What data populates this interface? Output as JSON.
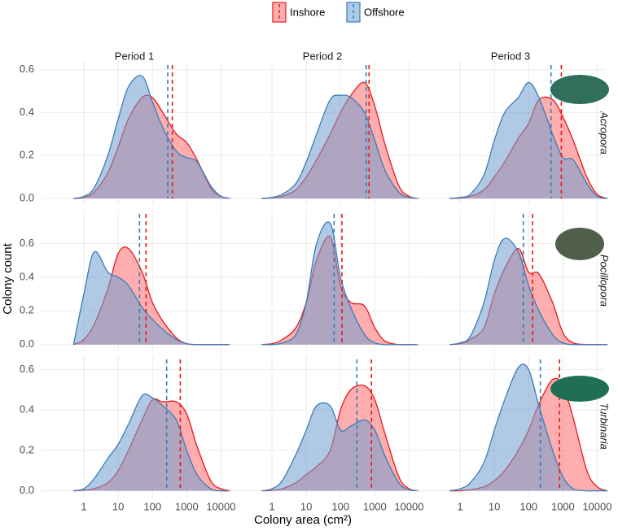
{
  "chart_data": {
    "type": "density",
    "x_label": "Colony area (cm²)",
    "y_label": "Colony count",
    "log_x": true,
    "grid": true,
    "legend_position": "top",
    "xlim": [
      0.055,
      16000
    ],
    "xticks": [
      1,
      10,
      100,
      1000,
      10000
    ],
    "x": [
      0.5,
      1,
      2,
      5,
      10,
      20,
      50,
      100,
      200,
      500,
      1000,
      2000,
      5000,
      10000,
      20000
    ],
    "series": [
      {
        "name": "Inshore",
        "color": "#e41a1c",
        "fill": "#ff6b6e"
      },
      {
        "name": "Offshore",
        "color": "#377eb8",
        "fill": "#6f9fd0"
      }
    ],
    "columns": [
      "Period 1",
      "Period 2",
      "Period 3"
    ],
    "rows": [
      {
        "label": "Acropora",
        "ylim": [
          -0.03,
          0.64
        ],
        "yticks": [
          {
            "value": 0,
            "label": "0.0"
          },
          0.2,
          0.4,
          0.6
        ]
      },
      {
        "label": "Pocillopora",
        "ylim": [
          -0.04,
          0.8
        ],
        "yticks": [
          {
            "value": 0,
            "label": "0.0"
          },
          0.2,
          0.4,
          0.6
        ]
      },
      {
        "label": "Turbinaria",
        "ylim": [
          -0.03,
          0.67
        ],
        "yticks": [
          {
            "value": 0,
            "label": "0.0"
          },
          0.2,
          0.4,
          0.6
        ]
      }
    ],
    "panels": [
      {
        "row": 0,
        "column": 0,
        "series": [
          {
            "values": [
              0,
              0.005,
              0.03,
              0.12,
              0.24,
              0.37,
              0.47,
              0.47,
              0.4,
              0.3,
              0.26,
              0.18,
              0.05,
              0.01,
              0
            ],
            "mean": 380
          },
          {
            "values": [
              0,
              0.01,
              0.05,
              0.2,
              0.37,
              0.52,
              0.57,
              0.45,
              0.33,
              0.22,
              0.19,
              0.17,
              0.06,
              0.01,
              0
            ],
            "mean": 280
          }
        ]
      },
      {
        "row": 0,
        "column": 1,
        "series": [
          {
            "values": [
              0,
              0.003,
              0.01,
              0.04,
              0.1,
              0.18,
              0.3,
              0.4,
              0.48,
              0.54,
              0.43,
              0.25,
              0.06,
              0.01,
              0
            ],
            "mean": 680
          },
          {
            "values": [
              0,
              0.005,
              0.02,
              0.07,
              0.17,
              0.3,
              0.46,
              0.48,
              0.47,
              0.4,
              0.27,
              0.13,
              0.03,
              0.005,
              0
            ],
            "mean": 560
          }
        ]
      },
      {
        "row": 0,
        "column": 2,
        "series": [
          {
            "values": [
              0,
              0.002,
              0.01,
              0.04,
              0.1,
              0.17,
              0.28,
              0.35,
              0.46,
              0.46,
              0.38,
              0.27,
              0.1,
              0.02,
              0
            ],
            "mean": 900
          },
          {
            "values": [
              0,
              0.005,
              0.02,
              0.11,
              0.27,
              0.4,
              0.47,
              0.54,
              0.47,
              0.3,
              0.19,
              0.18,
              0.07,
              0.01,
              0
            ],
            "mean": 450
          }
        ]
      },
      {
        "row": 1,
        "column": 0,
        "series": [
          {
            "values": [
              0,
              0.03,
              0.12,
              0.33,
              0.54,
              0.57,
              0.43,
              0.25,
              0.14,
              0.04,
              0.005,
              0,
              0,
              0,
              0
            ],
            "mean": 65
          },
          {
            "values": [
              0,
              0.3,
              0.55,
              0.43,
              0.4,
              0.35,
              0.22,
              0.15,
              0.09,
              0.03,
              0.005,
              0,
              0,
              0,
              0
            ],
            "mean": 42
          }
        ]
      },
      {
        "row": 1,
        "column": 1,
        "series": [
          {
            "values": [
              0,
              0.005,
              0.03,
              0.1,
              0.25,
              0.5,
              0.64,
              0.35,
              0.25,
              0.23,
              0.1,
              0.02,
              0,
              0,
              0
            ],
            "mean": 110
          },
          {
            "values": [
              0,
              0,
              0.01,
              0.06,
              0.25,
              0.6,
              0.72,
              0.4,
              0.22,
              0.06,
              0.01,
              0,
              0,
              0,
              0
            ],
            "mean": 65
          }
        ]
      },
      {
        "row": 1,
        "column": 2,
        "series": [
          {
            "values": [
              0,
              0.005,
              0.03,
              0.1,
              0.3,
              0.45,
              0.57,
              0.43,
              0.42,
              0.25,
              0.07,
              0.01,
              0,
              0,
              0
            ],
            "mean": 130
          },
          {
            "values": [
              0,
              0.01,
              0.05,
              0.25,
              0.5,
              0.63,
              0.55,
              0.35,
              0.2,
              0.06,
              0.01,
              0,
              0,
              0,
              0
            ],
            "mean": 70
          }
        ]
      },
      {
        "row": 2,
        "column": 0,
        "series": [
          {
            "values": [
              0,
              0.003,
              0.01,
              0.04,
              0.1,
              0.2,
              0.35,
              0.45,
              0.44,
              0.44,
              0.38,
              0.22,
              0.05,
              0.01,
              0
            ],
            "mean": 650
          },
          {
            "values": [
              0,
              0.01,
              0.06,
              0.16,
              0.23,
              0.33,
              0.47,
              0.46,
              0.42,
              0.35,
              0.2,
              0.08,
              0.01,
              0,
              0
            ],
            "mean": 260
          }
        ]
      },
      {
        "row": 2,
        "column": 1,
        "series": [
          {
            "values": [
              0,
              0.002,
              0.01,
              0.04,
              0.08,
              0.12,
              0.2,
              0.4,
              0.5,
              0.52,
              0.45,
              0.28,
              0.07,
              0.01,
              0
            ],
            "mean": 800
          },
          {
            "values": [
              0,
              0.01,
              0.05,
              0.18,
              0.3,
              0.42,
              0.42,
              0.3,
              0.32,
              0.35,
              0.3,
              0.17,
              0.04,
              0.005,
              0
            ],
            "mean": 300
          }
        ]
      },
      {
        "row": 2,
        "column": 2,
        "series": [
          {
            "values": [
              0,
              0,
              0.005,
              0.02,
              0.05,
              0.1,
              0.2,
              0.3,
              0.43,
              0.55,
              0.52,
              0.36,
              0.1,
              0.02,
              0
            ],
            "mean": 800
          },
          {
            "values": [
              0,
              0.01,
              0.04,
              0.14,
              0.3,
              0.45,
              0.61,
              0.6,
              0.42,
              0.2,
              0.07,
              0.01,
              0,
              0,
              0
            ],
            "mean": 220
          }
        ]
      }
    ]
  }
}
